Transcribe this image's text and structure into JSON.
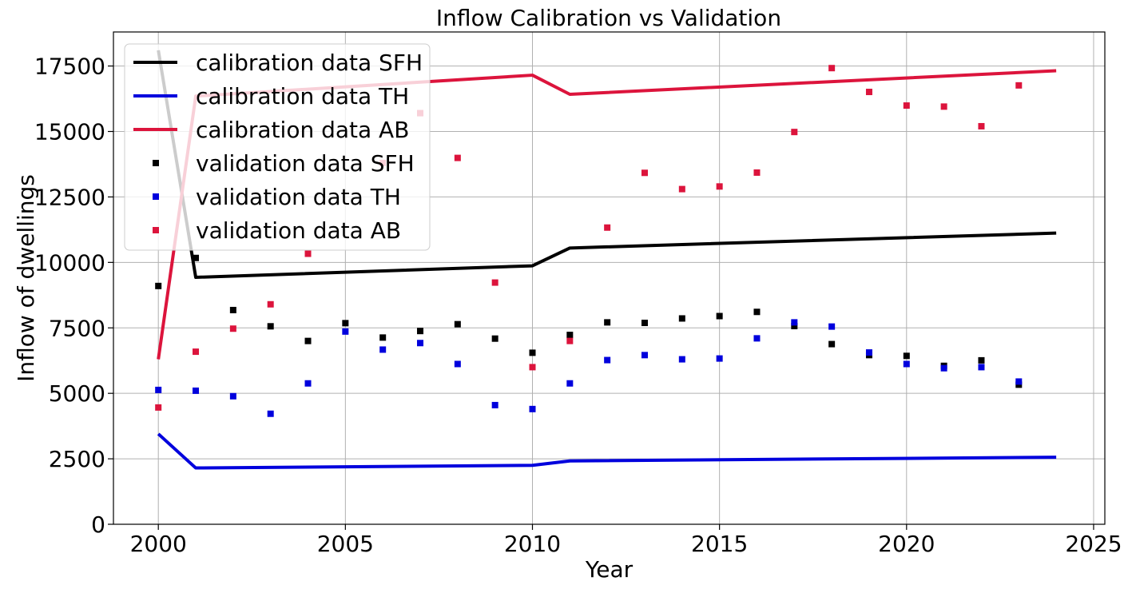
{
  "chart_data": {
    "type": "line",
    "title": "Inflow Calibration vs Validation",
    "xlabel": "Year",
    "ylabel": "Inflow of dwellings",
    "xlim": [
      1998.8,
      2025.3
    ],
    "ylim": [
      0,
      18800
    ],
    "xticks": [
      2000,
      2005,
      2010,
      2015,
      2020,
      2025
    ],
    "yticks": [
      0,
      2500,
      5000,
      7500,
      10000,
      12500,
      15000,
      17500
    ],
    "grid": true,
    "legend_position": "top-left",
    "series": [
      {
        "name": "calibration data SFH",
        "kind": "line",
        "color": "#000000",
        "x": [
          2000,
          2001,
          2010,
          2011,
          2024
        ],
        "y": [
          18100,
          9430,
          9870,
          10550,
          11120
        ]
      },
      {
        "name": "calibration data TH",
        "kind": "line",
        "color": "#0000dd",
        "x": [
          2000,
          2001,
          2010,
          2011,
          2024
        ],
        "y": [
          3450,
          2150,
          2250,
          2420,
          2560
        ]
      },
      {
        "name": "calibration data AB",
        "kind": "line",
        "color": "#dc143c",
        "x": [
          2000,
          2001,
          2010,
          2011,
          2024
        ],
        "y": [
          6300,
          16350,
          17150,
          16420,
          17320
        ]
      },
      {
        "name": "validation data SFH",
        "kind": "scatter",
        "color": "#000000",
        "x": [
          2000,
          2001,
          2002,
          2003,
          2004,
          2005,
          2006,
          2007,
          2008,
          2009,
          2010,
          2011,
          2012,
          2013,
          2014,
          2015,
          2016,
          2017,
          2018,
          2019,
          2020,
          2021,
          2022,
          2023
        ],
        "y": [
          9100,
          10170,
          8180,
          7560,
          7000,
          7680,
          7130,
          7380,
          7640,
          7090,
          6550,
          7230,
          7710,
          7690,
          7860,
          7950,
          8110,
          7570,
          6880,
          6460,
          6430,
          6050,
          6260,
          5330
        ]
      },
      {
        "name": "validation data TH",
        "kind": "scatter",
        "color": "#0000dd",
        "x": [
          2000,
          2001,
          2002,
          2003,
          2004,
          2005,
          2006,
          2007,
          2008,
          2009,
          2010,
          2011,
          2012,
          2013,
          2014,
          2015,
          2016,
          2017,
          2018,
          2019,
          2020,
          2021,
          2022,
          2023
        ],
        "y": [
          5130,
          5100,
          4890,
          4220,
          5380,
          7360,
          6670,
          6920,
          6120,
          4550,
          4400,
          5380,
          6270,
          6460,
          6300,
          6330,
          7100,
          7710,
          7550,
          6560,
          6120,
          5960,
          6000,
          5450
        ]
      },
      {
        "name": "validation data AB",
        "kind": "scatter",
        "color": "#dc143c",
        "x": [
          2000,
          2001,
          2002,
          2003,
          2004,
          2006,
          2007,
          2008,
          2009,
          2010,
          2011,
          2012,
          2013,
          2014,
          2015,
          2016,
          2017,
          2018,
          2019,
          2020,
          2021,
          2022,
          2023
        ],
        "y": [
          4460,
          6590,
          7470,
          8400,
          10330,
          13800,
          15700,
          13990,
          9230,
          6000,
          7000,
          11330,
          13420,
          12800,
          12900,
          13430,
          14980,
          17420,
          16510,
          15990,
          15950,
          15200,
          16760
        ]
      }
    ]
  }
}
